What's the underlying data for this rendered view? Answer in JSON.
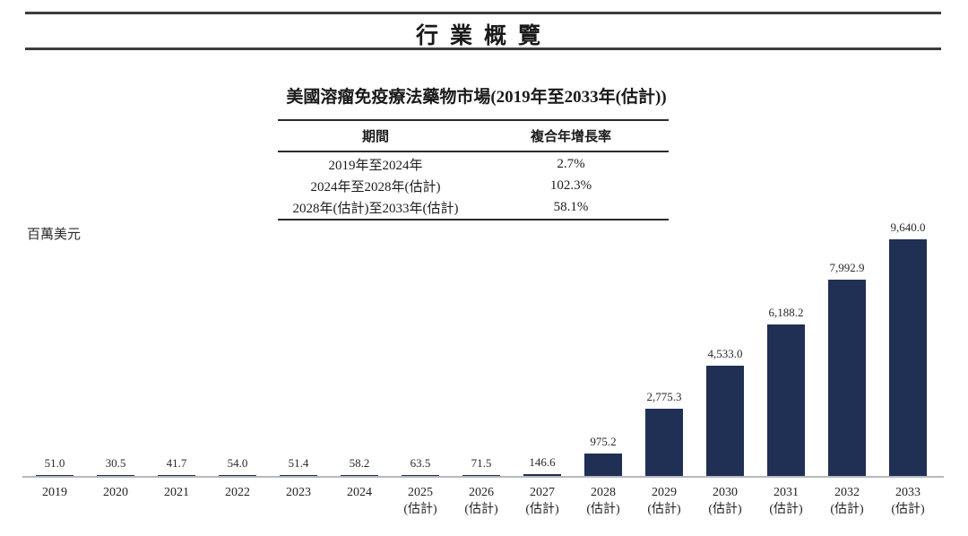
{
  "banner": {
    "title": "行業概覽"
  },
  "section": {
    "chart_title": "美國溶瘤免疫療法藥物市場(2019年至2033年(估計))",
    "unit_label": "百萬美元"
  },
  "cagr_table": {
    "col_period": "期間",
    "col_cagr": "複合年增長率",
    "rows": [
      {
        "period": "2019年至2024年",
        "cagr": "2.7%"
      },
      {
        "period": "2024年至2028年(估計)",
        "cagr": "102.3%"
      },
      {
        "period": "2028年(估計)至2033年(估計)",
        "cagr": "58.1%"
      }
    ]
  },
  "chart_data": {
    "type": "bar",
    "title": "美國溶瘤免疫療法藥物市場(2019年至2033年(估計))",
    "ylabel": "百萬美元",
    "xlabel": "",
    "ylim": [
      0,
      9700
    ],
    "grid": false,
    "legend": "none",
    "bar_color": "#202f54",
    "categories": [
      "2019",
      "2020",
      "2021",
      "2022",
      "2023",
      "2024",
      "2025",
      "2026",
      "2027",
      "2028",
      "2029",
      "2030",
      "2031",
      "2032",
      "2033"
    ],
    "estimated": [
      false,
      false,
      false,
      false,
      false,
      false,
      true,
      true,
      true,
      true,
      true,
      true,
      true,
      true,
      true
    ],
    "estimated_suffix": "(估計)",
    "values": [
      51.0,
      30.5,
      41.7,
      54.0,
      51.4,
      58.2,
      63.5,
      71.5,
      146.6,
      975.2,
      2775.3,
      4533.0,
      6188.2,
      7992.9,
      9640.0
    ],
    "value_labels": [
      "51.0",
      "30.5",
      "41.7",
      "54.0",
      "51.4",
      "58.2",
      "63.5",
      "71.5",
      "146.6",
      "975.2",
      "2,775.3",
      "4,533.0",
      "6,188.2",
      "7,992.9",
      "9,640.0"
    ],
    "cagr_annotations": [
      {
        "period": "2019年至2024年",
        "cagr": "2.7%"
      },
      {
        "period": "2024年至2028年(估計)",
        "cagr": "102.3%"
      },
      {
        "period": "2028年(估計)至2033年(估計)",
        "cagr": "58.1%"
      }
    ]
  }
}
